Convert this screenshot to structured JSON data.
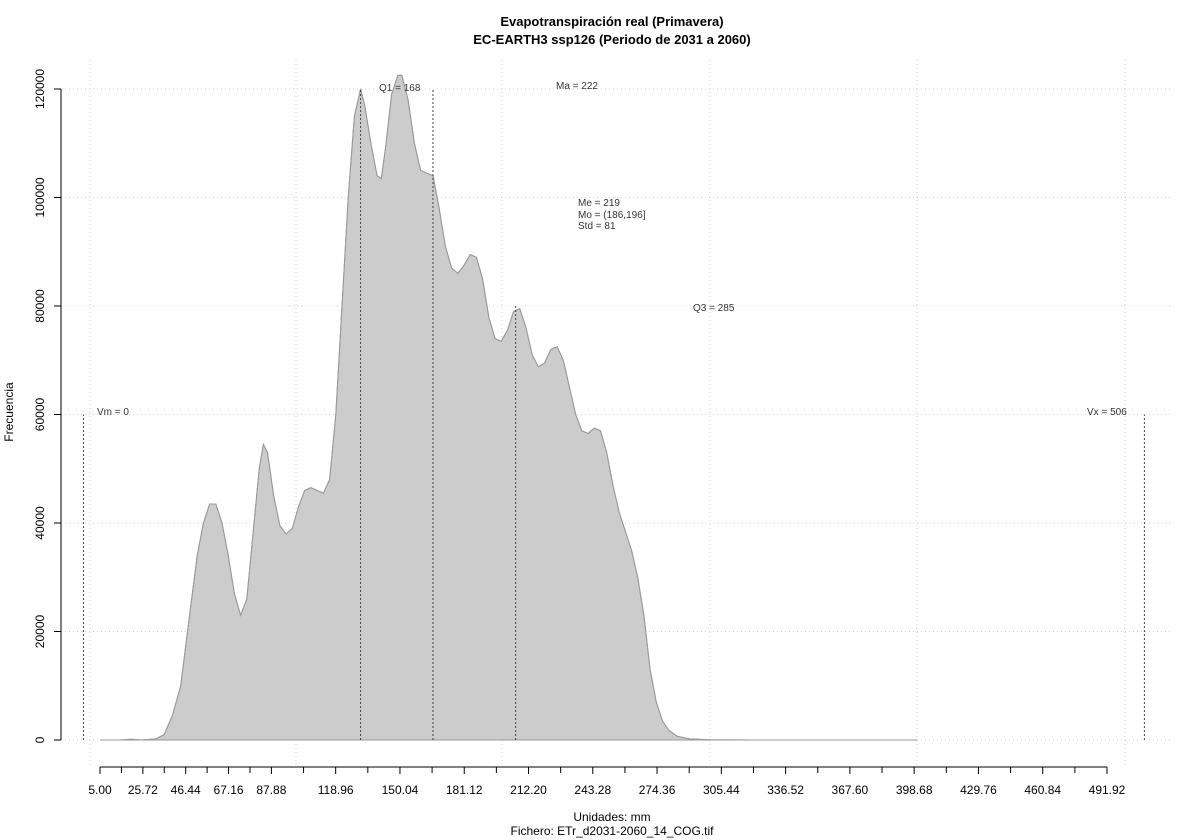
{
  "chart_data": {
    "type": "area",
    "title": "Evapotranspiración real (Primavera)",
    "subtitle": "EC-EARTH3 ssp126 (Periodo de 2031 a 2060)",
    "xlabel": "Unidades: mm",
    "footer": "Fichero: ETr_d2031-2060_14_COG.tif",
    "ylabel": "Frecuencia",
    "fill_color": "#cccccc",
    "line_color": "#999999",
    "grid": true,
    "xlim": [
      0,
      520
    ],
    "ylim": [
      0,
      125000
    ],
    "x_ticks": [
      5.0,
      25.72,
      46.44,
      67.16,
      87.88,
      118.96,
      150.04,
      181.12,
      212.2,
      243.28,
      274.36,
      305.44,
      336.52,
      367.6,
      398.68,
      429.76,
      460.84,
      491.92
    ],
    "x_tick_labels": [
      "5.00",
      "25.72",
      "46.44",
      "67.16",
      "87.88",
      "118.96",
      "150.04",
      "181.12",
      "212.20",
      "243.28",
      "274.36",
      "305.44",
      "336.52",
      "367.60",
      "398.68",
      "429.76",
      "460.84",
      "491.92"
    ],
    "y_ticks": [
      0,
      20000,
      40000,
      60000,
      80000,
      100000,
      120000
    ],
    "y_tick_labels": [
      "0",
      "20000",
      "40000",
      "60000",
      "80000",
      "100000",
      "120000"
    ],
    "series": [
      {
        "values": [
          [
            5,
            0
          ],
          [
            15,
            0
          ],
          [
            20,
            150
          ],
          [
            25,
            0
          ],
          [
            32,
            200
          ],
          [
            36,
            1000
          ],
          [
            40,
            4500
          ],
          [
            44,
            10000
          ],
          [
            48,
            22000
          ],
          [
            52,
            34000
          ],
          [
            55,
            40000
          ],
          [
            58,
            43500
          ],
          [
            61,
            43500
          ],
          [
            64,
            40000
          ],
          [
            67,
            34000
          ],
          [
            70,
            27000
          ],
          [
            73,
            23000
          ],
          [
            76,
            26000
          ],
          [
            79,
            38000
          ],
          [
            82,
            50000
          ],
          [
            84,
            54500
          ],
          [
            86,
            53000
          ],
          [
            89,
            45000
          ],
          [
            92,
            39500
          ],
          [
            95,
            38000
          ],
          [
            98,
            39000
          ],
          [
            101,
            43000
          ],
          [
            104,
            46000
          ],
          [
            107,
            46500
          ],
          [
            110,
            46000
          ],
          [
            113,
            45500
          ],
          [
            116,
            48000
          ],
          [
            119,
            60000
          ],
          [
            122,
            80000
          ],
          [
            125,
            100000
          ],
          [
            128,
            115000
          ],
          [
            131,
            120000
          ],
          [
            133,
            117000
          ],
          [
            136,
            110000
          ],
          [
            139,
            104000
          ],
          [
            141,
            103500
          ],
          [
            143,
            109000
          ],
          [
            146,
            119000
          ],
          [
            149,
            122500
          ],
          [
            151,
            122500
          ],
          [
            154,
            118000
          ],
          [
            157,
            110000
          ],
          [
            160,
            105000
          ],
          [
            163,
            104500
          ],
          [
            166,
            104000
          ],
          [
            169,
            98000
          ],
          [
            172,
            91000
          ],
          [
            175,
            87000
          ],
          [
            178,
            86000
          ],
          [
            181,
            87500
          ],
          [
            184,
            89500
          ],
          [
            187,
            89000
          ],
          [
            190,
            85000
          ],
          [
            193,
            78000
          ],
          [
            196,
            74000
          ],
          [
            199,
            73500
          ],
          [
            202,
            75500
          ],
          [
            205,
            79000
          ],
          [
            208,
            79500
          ],
          [
            211,
            76000
          ],
          [
            214,
            71000
          ],
          [
            217,
            68800
          ],
          [
            220,
            69500
          ],
          [
            223,
            72000
          ],
          [
            226,
            72500
          ],
          [
            229,
            70000
          ],
          [
            232,
            65000
          ],
          [
            235,
            60000
          ],
          [
            238,
            57000
          ],
          [
            241,
            56500
          ],
          [
            244,
            57500
          ],
          [
            247,
            57000
          ],
          [
            250,
            53000
          ],
          [
            253,
            47000
          ],
          [
            256,
            42000
          ],
          [
            259,
            38500
          ],
          [
            262,
            35000
          ],
          [
            265,
            30000
          ],
          [
            268,
            23000
          ],
          [
            271,
            13000
          ],
          [
            274,
            7000
          ],
          [
            277,
            3500
          ],
          [
            280,
            1800
          ],
          [
            284,
            700
          ],
          [
            290,
            200
          ],
          [
            300,
            50
          ],
          [
            320,
            0
          ],
          [
            360,
            0
          ],
          [
            400,
            0
          ]
        ]
      }
    ],
    "annotations": {
      "vm": {
        "label": "Vm = 0",
        "value": -3,
        "height": 60000
      },
      "q1": {
        "label": "Q1 = 168",
        "value": 131,
        "height": 120000
      },
      "ma": {
        "label": "Ma = 222",
        "value": 166,
        "height": 120000
      },
      "q3": {
        "label": "Q3 = 285",
        "value": 206,
        "height": 80000
      },
      "vx": {
        "label": "Vx = 506",
        "value": 510,
        "height": 60000
      },
      "stats": {
        "me": "Me = 219",
        "mo": "Mo = (186,196]",
        "std": "Std = 81"
      }
    }
  }
}
